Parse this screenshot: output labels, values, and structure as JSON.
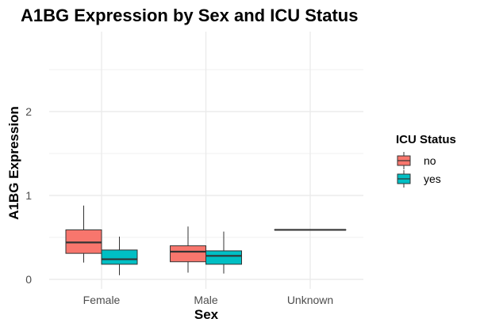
{
  "chart_data": {
    "type": "boxplot",
    "title": "A1BG Expression by Sex and ICU Status",
    "xlabel": "Sex",
    "ylabel": "A1BG Expression",
    "categories": [
      "Female",
      "Male",
      "Unknown"
    ],
    "ylim": [
      -0.05,
      2.6
    ],
    "yticks": [
      0,
      1,
      2
    ],
    "grid": true,
    "legend": {
      "title": "ICU Status",
      "position": "right"
    },
    "series": [
      {
        "name": "no",
        "color": "#F8766D",
        "boxes": [
          {
            "category": "Female",
            "min": 0.2,
            "q1": 0.31,
            "median": 0.44,
            "q3": 0.59,
            "max": 0.88
          },
          {
            "category": "Male",
            "min": 0.08,
            "q1": 0.21,
            "median": 0.33,
            "q3": 0.4,
            "max": 0.63
          },
          {
            "category": "Unknown",
            "min": 0.59,
            "q1": 0.59,
            "median": 0.59,
            "q3": 0.59,
            "max": 0.59
          }
        ]
      },
      {
        "name": "yes",
        "color": "#00BFC4",
        "boxes": [
          {
            "category": "Female",
            "min": 0.05,
            "q1": 0.18,
            "median": 0.24,
            "q3": 0.35,
            "max": 0.51
          },
          {
            "category": "Male",
            "min": 0.07,
            "q1": 0.18,
            "median": 0.28,
            "q3": 0.34,
            "max": 0.57
          }
        ]
      }
    ]
  }
}
